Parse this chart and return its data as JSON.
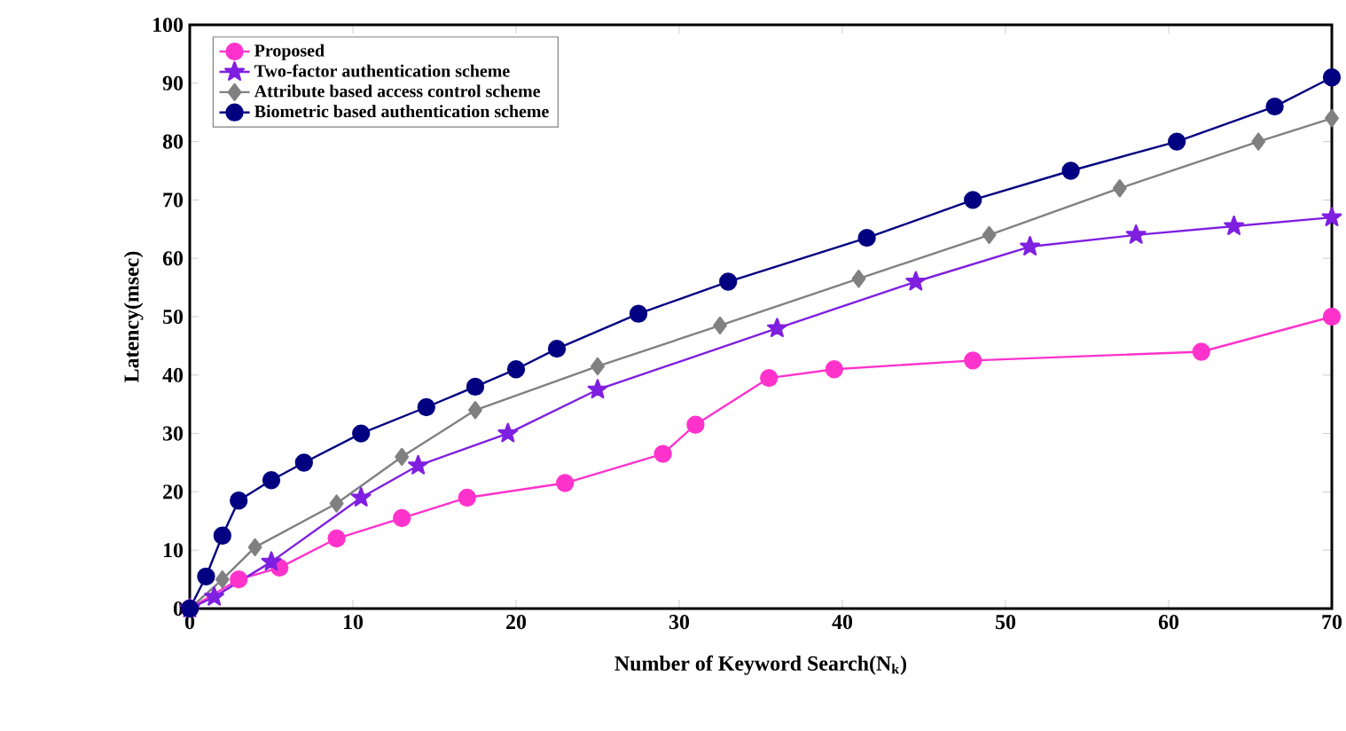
{
  "chart_data": {
    "type": "line",
    "xlabel": "Number of Keyword Search(N$_{k}$)",
    "ylabel": "Latency(msec)",
    "xlim": [
      0,
      70
    ],
    "xticks": [
      0,
      10,
      20,
      30,
      40,
      50,
      60,
      70
    ],
    "ylim": [
      0,
      100
    ],
    "yticks": [
      0,
      10,
      20,
      30,
      40,
      50,
      60,
      70,
      80,
      90,
      100
    ],
    "grid": false,
    "legend": "top left",
    "series": [
      {
        "name": "Proposed",
        "color": "#ff33cc",
        "marker": "circle",
        "x": [
          0,
          3,
          5.5,
          9,
          13,
          17,
          23,
          29,
          31,
          35.5,
          39.5,
          48,
          62,
          70
        ],
        "values": [
          0,
          5,
          7,
          12,
          15.5,
          19,
          21.5,
          26.5,
          31.5,
          39.5,
          41,
          42.5,
          44,
          50
        ]
      },
      {
        "name": "Two-factor authentication scheme",
        "color": "#7f1fe0",
        "marker": "star",
        "x": [
          0,
          1.5,
          5,
          10.5,
          14,
          19.5,
          25,
          36,
          44.5,
          51.5,
          58,
          64,
          70
        ],
        "values": [
          0,
          2,
          8,
          19,
          24.5,
          30,
          37.5,
          48,
          56,
          62,
          64,
          65.5,
          67
        ]
      },
      {
        "name": "Attribute based access control scheme",
        "color": "#808080",
        "marker": "diamond",
        "x": [
          0,
          2,
          4,
          9,
          13,
          17.5,
          25,
          32.5,
          41,
          49,
          57,
          65.5,
          70
        ],
        "values": [
          0,
          5,
          10.5,
          18,
          26,
          34,
          41.5,
          48.5,
          56.5,
          64,
          72,
          80,
          84
        ]
      },
      {
        "name": "Biometric based authentication scheme",
        "color": "#000080",
        "marker": "circle",
        "x": [
          0,
          1,
          2,
          3,
          5,
          7,
          10.5,
          14.5,
          17.5,
          20,
          22.5,
          27.5,
          33,
          41.5,
          48,
          54,
          60.5,
          66.5,
          70
        ],
        "values": [
          0,
          5.5,
          12.5,
          18.5,
          22,
          25,
          30,
          34.5,
          38,
          41,
          44.5,
          50.5,
          56,
          63.5,
          70,
          75,
          80,
          86,
          91
        ]
      }
    ]
  }
}
